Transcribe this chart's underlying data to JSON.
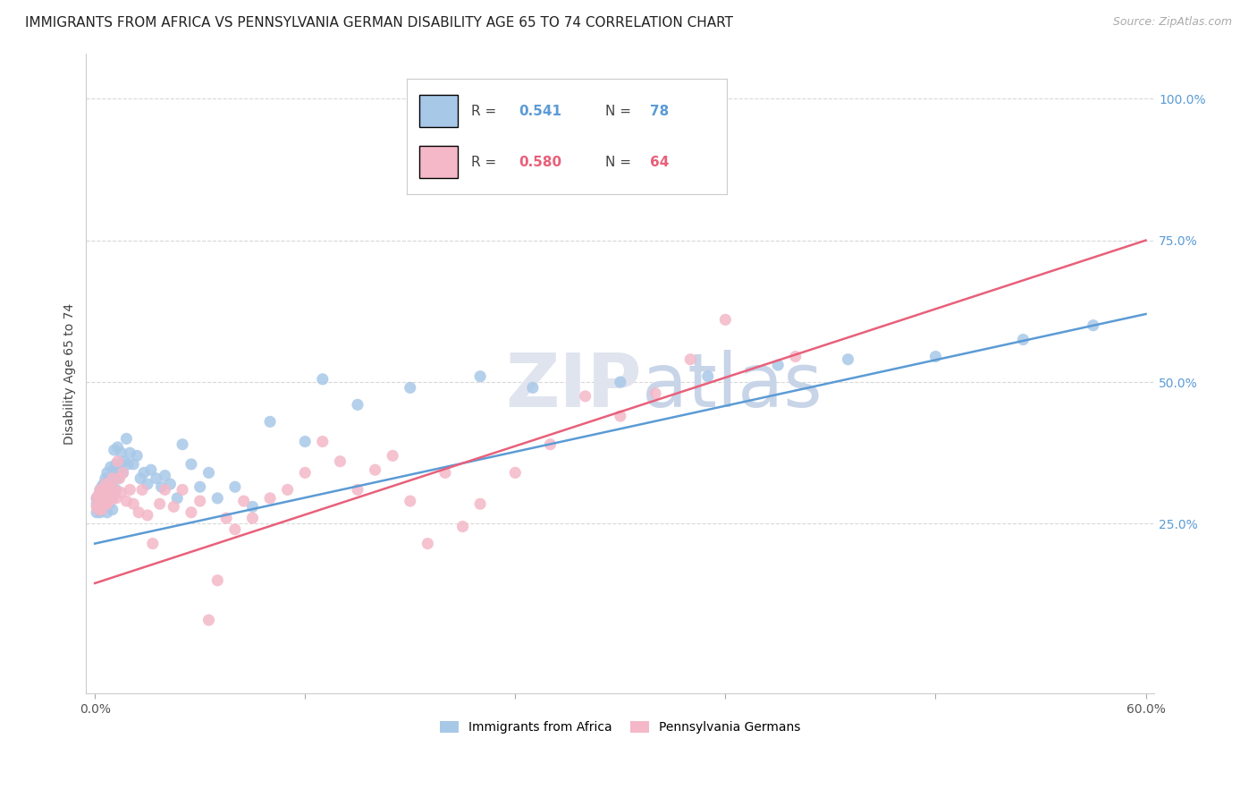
{
  "title": "IMMIGRANTS FROM AFRICA VS PENNSYLVANIA GERMAN DISABILITY AGE 65 TO 74 CORRELATION CHART",
  "source": "Source: ZipAtlas.com",
  "ylabel": "Disability Age 65 to 74",
  "legend_blue_r": "0.541",
  "legend_blue_n": "78",
  "legend_pink_r": "0.580",
  "legend_pink_n": "64",
  "legend_label_blue": "Immigrants from Africa",
  "legend_label_pink": "Pennsylvania Germans",
  "color_blue": "#a8c8e8",
  "color_pink": "#f4b8c8",
  "line_color_blue": "#5b9bd5",
  "line_color_pink": "#e8607a",
  "tick_color_right": "#5b9bd5",
  "watermark_zip": "ZIP",
  "watermark_atlas": "atlas",
  "bg_color": "#ffffff",
  "grid_color": "#d8d8d8",
  "blue_scatter_x": [
    0.001,
    0.001,
    0.001,
    0.002,
    0.002,
    0.002,
    0.002,
    0.003,
    0.003,
    0.003,
    0.003,
    0.004,
    0.004,
    0.004,
    0.004,
    0.005,
    0.005,
    0.005,
    0.006,
    0.006,
    0.006,
    0.007,
    0.007,
    0.007,
    0.008,
    0.008,
    0.008,
    0.009,
    0.009,
    0.01,
    0.01,
    0.01,
    0.011,
    0.011,
    0.012,
    0.012,
    0.013,
    0.013,
    0.014,
    0.015,
    0.015,
    0.016,
    0.017,
    0.018,
    0.019,
    0.02,
    0.022,
    0.024,
    0.026,
    0.028,
    0.03,
    0.032,
    0.035,
    0.038,
    0.04,
    0.043,
    0.047,
    0.05,
    0.055,
    0.06,
    0.065,
    0.07,
    0.08,
    0.09,
    0.1,
    0.12,
    0.13,
    0.15,
    0.18,
    0.22,
    0.25,
    0.3,
    0.35,
    0.39,
    0.43,
    0.48,
    0.53,
    0.57
  ],
  "blue_scatter_y": [
    0.285,
    0.27,
    0.295,
    0.275,
    0.28,
    0.3,
    0.29,
    0.285,
    0.31,
    0.27,
    0.295,
    0.3,
    0.285,
    0.315,
    0.275,
    0.295,
    0.32,
    0.28,
    0.31,
    0.33,
    0.285,
    0.295,
    0.34,
    0.27,
    0.305,
    0.33,
    0.285,
    0.315,
    0.35,
    0.295,
    0.33,
    0.275,
    0.345,
    0.38,
    0.31,
    0.355,
    0.33,
    0.385,
    0.345,
    0.355,
    0.375,
    0.34,
    0.36,
    0.4,
    0.355,
    0.375,
    0.355,
    0.37,
    0.33,
    0.34,
    0.32,
    0.345,
    0.33,
    0.315,
    0.335,
    0.32,
    0.295,
    0.39,
    0.355,
    0.315,
    0.34,
    0.295,
    0.315,
    0.28,
    0.43,
    0.395,
    0.505,
    0.46,
    0.49,
    0.51,
    0.49,
    0.5,
    0.51,
    0.53,
    0.54,
    0.545,
    0.575,
    0.6
  ],
  "pink_scatter_x": [
    0.001,
    0.001,
    0.002,
    0.002,
    0.003,
    0.003,
    0.004,
    0.004,
    0.005,
    0.005,
    0.006,
    0.006,
    0.007,
    0.007,
    0.008,
    0.009,
    0.01,
    0.01,
    0.011,
    0.012,
    0.013,
    0.014,
    0.015,
    0.016,
    0.018,
    0.02,
    0.022,
    0.025,
    0.027,
    0.03,
    0.033,
    0.037,
    0.04,
    0.045,
    0.05,
    0.055,
    0.06,
    0.065,
    0.07,
    0.075,
    0.08,
    0.085,
    0.09,
    0.1,
    0.11,
    0.12,
    0.13,
    0.14,
    0.15,
    0.16,
    0.17,
    0.18,
    0.19,
    0.2,
    0.21,
    0.22,
    0.24,
    0.26,
    0.28,
    0.3,
    0.32,
    0.34,
    0.36,
    0.4
  ],
  "pink_scatter_y": [
    0.28,
    0.295,
    0.275,
    0.3,
    0.285,
    0.31,
    0.275,
    0.295,
    0.29,
    0.31,
    0.3,
    0.32,
    0.285,
    0.305,
    0.29,
    0.315,
    0.295,
    0.33,
    0.31,
    0.295,
    0.36,
    0.33,
    0.305,
    0.34,
    0.29,
    0.31,
    0.285,
    0.27,
    0.31,
    0.265,
    0.215,
    0.285,
    0.31,
    0.28,
    0.31,
    0.27,
    0.29,
    0.08,
    0.15,
    0.26,
    0.24,
    0.29,
    0.26,
    0.295,
    0.31,
    0.34,
    0.395,
    0.36,
    0.31,
    0.345,
    0.37,
    0.29,
    0.215,
    0.34,
    0.245,
    0.285,
    0.34,
    0.39,
    0.475,
    0.44,
    0.48,
    0.54,
    0.61,
    0.545
  ],
  "blue_line_x": [
    0.0,
    0.6
  ],
  "blue_line_y": [
    0.215,
    0.62
  ],
  "pink_line_x": [
    0.0,
    0.6
  ],
  "pink_line_y": [
    0.145,
    0.75
  ],
  "xlim": [
    -0.005,
    0.605
  ],
  "ylim": [
    -0.05,
    1.08
  ],
  "yticks": [
    0.25,
    0.5,
    0.75,
    1.0
  ],
  "ytick_labels": [
    "25.0%",
    "50.0%",
    "75.0%",
    "100.0%"
  ],
  "xtick_positions": [
    0.0,
    0.12,
    0.24,
    0.36,
    0.48,
    0.6
  ],
  "xtick_labels": [
    "0.0%",
    "",
    "",
    "",
    "",
    "60.0%"
  ],
  "title_fontsize": 11,
  "source_fontsize": 9,
  "axis_label_fontsize": 10,
  "tick_fontsize": 10,
  "legend_fontsize": 11
}
